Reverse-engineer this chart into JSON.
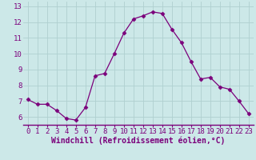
{
  "x": [
    0,
    1,
    2,
    3,
    4,
    5,
    6,
    7,
    8,
    9,
    10,
    11,
    12,
    13,
    14,
    15,
    16,
    17,
    18,
    19,
    20,
    21,
    22,
    23
  ],
  "y": [
    7.1,
    6.8,
    6.8,
    6.4,
    5.9,
    5.8,
    6.6,
    8.6,
    8.75,
    10.0,
    11.3,
    12.2,
    12.4,
    12.65,
    12.55,
    11.55,
    10.7,
    9.5,
    8.4,
    8.5,
    7.9,
    7.75,
    7.0,
    6.2
  ],
  "line_color": "#7b007b",
  "marker": "D",
  "marker_size": 2.5,
  "bg_color": "#cce8e8",
  "grid_color": "#b0d0d0",
  "xlabel": "Windchill (Refroidissement éolien,°C)",
  "xlabel_color": "#7b007b",
  "xlim": [
    -0.5,
    23.5
  ],
  "ylim": [
    5.5,
    13.3
  ],
  "yticks": [
    6,
    7,
    8,
    9,
    10,
    11,
    12,
    13
  ],
  "xticks": [
    0,
    1,
    2,
    3,
    4,
    5,
    6,
    7,
    8,
    9,
    10,
    11,
    12,
    13,
    14,
    15,
    16,
    17,
    18,
    19,
    20,
    21,
    22,
    23
  ],
  "tick_label_color": "#7b007b",
  "tick_label_fontsize": 6.5,
  "xlabel_fontsize": 7.0,
  "xlabel_fontweight": "bold"
}
